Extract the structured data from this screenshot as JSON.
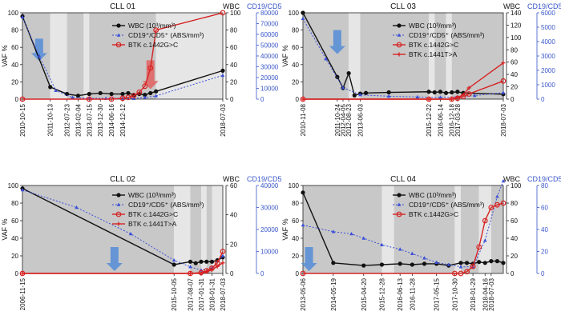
{
  "colors": {
    "wbc": "#111111",
    "cd19": "#3a4fd8",
    "btk": "#d62222",
    "shade_dark": "#c8c8c8",
    "shade_light": "#e6e6e6",
    "arrow_blue": "#5b8fd6",
    "arrow_red": "#e06666",
    "axis_right": "#3a57c9"
  },
  "chart_data": [
    {
      "type": "line",
      "title": "CLL 01",
      "ylabel": "VAF %",
      "wbc_axis_label": "WBC",
      "cd19_axis_label": "CD19/CD5",
      "yticks": [
        "0",
        "20",
        "40",
        "60",
        "80",
        "100"
      ],
      "wbc_ticks": [
        "0",
        "20",
        "40",
        "60",
        "80",
        "100"
      ],
      "cd19_ticks": [
        "0",
        "10000",
        "20000",
        "30000",
        "40000",
        "50000",
        "60000",
        "70000",
        "80000"
      ],
      "x_labels": [
        "2010-10-15",
        "2011-10-13",
        "2012-07-23",
        "2013-02-04",
        "2013-07-15",
        "2013-12-30",
        "2014-06-16",
        "2014-12-12",
        "2018-07-03"
      ],
      "legend": [
        "WBC (10³/mm³)",
        "CD19⁺/CD5⁺ (ABS/mm³)",
        "BTK c.1442G>C"
      ],
      "series": [
        {
          "name": "WBC (10³/mm³)",
          "x": [
            0,
            5,
            8,
            10,
            12,
            14,
            16,
            18,
            19,
            20,
            21,
            22,
            23,
            24,
            36
          ],
          "y": [
            96,
            14,
            6,
            4,
            6,
            7,
            6,
            6,
            7,
            5,
            6,
            5,
            7,
            9,
            33
          ]
        },
        {
          "name": "CD19⁺/CD5⁺ (ABS/mm³)",
          "x": [
            0,
            3,
            6,
            9,
            12,
            15,
            18,
            20,
            22,
            24,
            36
          ],
          "y": [
            76000,
            40000,
            8000,
            1500,
            800,
            700,
            800,
            600,
            1500,
            3000,
            22000
          ]
        },
        {
          "name": "BTK c.1442G>C",
          "x": [
            0,
            12,
            16,
            18,
            19,
            20,
            21,
            22,
            23,
            24,
            36
          ],
          "y": [
            0,
            0,
            0,
            1,
            2,
            4,
            8,
            15,
            36,
            80,
            100
          ]
        }
      ]
    },
    {
      "type": "line",
      "title": "CLL 03",
      "ylabel": "VAF %",
      "wbc_axis_label": "WBC",
      "cd19_axis_label": "CD19/CD5",
      "yticks": [
        "0",
        "20",
        "40",
        "60",
        "80",
        "100"
      ],
      "wbc_ticks": [
        "0",
        "20",
        "40",
        "60",
        "80",
        "100",
        "120",
        "140"
      ],
      "cd19_ticks": [
        "0",
        "1000",
        "2000",
        "3000",
        "4000",
        "5000",
        "6000"
      ],
      "x_labels": [
        "2010-11-08",
        "2011-10-24",
        "2012-04-05",
        "2012-08-23",
        "2013-06-03",
        "2015-12-22",
        "2016-06-14",
        "2016-12-18",
        "2017-03-28",
        "2018-07-03"
      ],
      "legend": [
        "WBC (10³/mm³)",
        "CD19⁺/CD5⁺ (ABS/mm³)",
        "BTK c.1442G>C",
        "BTK c.1441T>A"
      ],
      "series": [
        {
          "name": "WBC (10³/mm³)",
          "x": [
            0,
            6,
            7,
            8,
            9,
            10,
            11,
            15,
            22,
            23,
            24,
            25,
            26,
            27,
            28,
            35
          ],
          "y": [
            140,
            36,
            18,
            42,
            6,
            9,
            10,
            11,
            12,
            11,
            12,
            10,
            11,
            12,
            10,
            8
          ]
        },
        {
          "name": "CD19⁺/CD5⁺ (ABS/mm³)",
          "x": [
            0,
            4,
            7,
            10,
            15,
            20,
            24,
            27,
            30,
            35
          ],
          "y": [
            5600,
            2800,
            800,
            300,
            200,
            150,
            120,
            160,
            250,
            450
          ]
        },
        {
          "name": "BTK c.1442G>C",
          "x": [
            0,
            22,
            26,
            27,
            28,
            29,
            35
          ],
          "y": [
            0,
            0,
            0,
            1,
            3,
            6,
            21
          ]
        },
        {
          "name": "BTK c.1441T>A",
          "x": [
            0,
            22,
            26,
            27,
            28,
            29,
            35
          ],
          "y": [
            0,
            0,
            0,
            2,
            5,
            13,
            42
          ]
        }
      ]
    },
    {
      "type": "line",
      "title": "CLL 02",
      "ylabel": "VAF %",
      "wbc_axis_label": "WBC",
      "cd19_axis_label": "CD19/CD5",
      "yticks": [
        "0",
        "20",
        "40",
        "60",
        "80",
        "100"
      ],
      "wbc_ticks": [
        "0",
        "20",
        "40",
        "60"
      ],
      "cd19_ticks": [
        "0",
        "10000",
        "20000",
        "30000",
        "40000"
      ],
      "x_labels": [
        "2006-11-15",
        "2015-10-05",
        "2017-08-07",
        "2017-01-31",
        "2018-01-31",
        "2018-07-03"
      ],
      "legend": [
        "WBC (10³/mm³)",
        "CD19⁺/CD5⁺ (ABS/mm³)",
        "BTK c.1442G>C",
        "BTK c.1441T>A"
      ],
      "series": [
        {
          "name": "WBC (10³/mm³)",
          "x": [
            0,
            28,
            31,
            32,
            33,
            34,
            35,
            36,
            37
          ],
          "y": [
            58,
            6,
            8,
            7,
            8,
            8,
            8,
            9,
            11
          ]
        },
        {
          "name": "CD19⁺/CD5⁺ (ABS/mm³)",
          "x": [
            0,
            10,
            20,
            28,
            31,
            33,
            35,
            37
          ],
          "y": [
            38000,
            30000,
            18000,
            6000,
            3000,
            1500,
            2500,
            8000
          ]
        },
        {
          "name": "BTK c.1442G>C",
          "x": [
            0,
            31,
            33,
            34,
            35,
            36,
            37
          ],
          "y": [
            0,
            0,
            1,
            3,
            6,
            12,
            25
          ]
        },
        {
          "name": "BTK c.1441T>A",
          "x": [
            0,
            31,
            33,
            34,
            35,
            36,
            37
          ],
          "y": [
            0,
            0,
            0,
            2,
            4,
            8,
            12
          ]
        }
      ]
    },
    {
      "type": "line",
      "title": "CLL 04",
      "ylabel": "VAF %",
      "wbc_axis_label": "WBC",
      "cd19_axis_label": "CD19/CD5",
      "yticks": [
        "0",
        "20",
        "40",
        "60",
        "80",
        "100"
      ],
      "wbc_ticks": [
        "0",
        "20",
        "40",
        "60",
        "80",
        "100"
      ],
      "cd19_ticks": [
        "0",
        "20",
        "40",
        "60",
        "80"
      ],
      "x_labels": [
        "2013-05-06",
        "2014-05-19",
        "2015-04-20",
        "2015-12-28",
        "2016-06-13",
        "2016-11-28",
        "2017-05-15",
        "2017-10-30",
        "2018-01-29",
        "2018-04-16",
        "2018-07-03"
      ],
      "legend": [
        "WBC (10³/mm³)",
        "CD19⁺/CD5⁺ (ABS/mm³)",
        "BTK c.1442G>C"
      ],
      "series": [
        {
          "name": "WBC (10³/mm³)",
          "x": [
            0,
            5,
            10,
            13,
            16,
            18,
            20,
            22,
            24,
            26,
            27,
            28,
            29,
            30,
            31,
            32,
            33
          ],
          "y": [
            92,
            12,
            9,
            10,
            11,
            10,
            11,
            11,
            9,
            12,
            12,
            11,
            13,
            12,
            14,
            14,
            12
          ]
        },
        {
          "name": "CD19⁺/CD5⁺ (ABS/mm³)",
          "x": [
            0,
            5,
            8,
            10,
            13,
            16,
            18,
            20,
            22,
            24,
            26,
            28,
            30,
            32,
            33
          ],
          "y": [
            44,
            38,
            36,
            32,
            26,
            22,
            18,
            14,
            10,
            8,
            6,
            6,
            30,
            70,
            84
          ]
        },
        {
          "name": "BTK c.1442G>C",
          "x": [
            0,
            25,
            26,
            27,
            28,
            29,
            30,
            31,
            32,
            33
          ],
          "y": [
            0,
            0,
            0,
            2,
            8,
            30,
            60,
            75,
            78,
            80
          ]
        }
      ]
    }
  ]
}
